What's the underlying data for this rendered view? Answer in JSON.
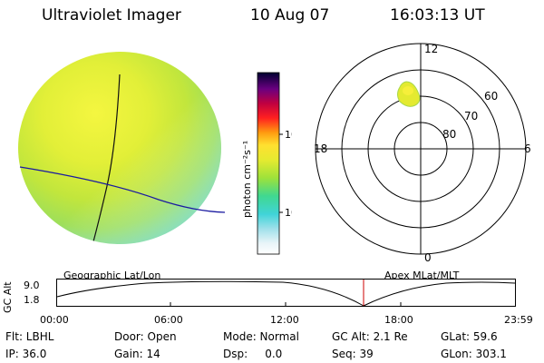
{
  "header": {
    "title": "Ultraviolet Imager",
    "date": "10 Aug 07",
    "time": "16:03:13 UT"
  },
  "colorbar": {
    "unit_label": "photon cm⁻²s⁻¹",
    "tick_100": "100",
    "tick_10": "10"
  },
  "polar": {
    "mlt_top": "12",
    "mlt_left": "18",
    "mlt_right": "6",
    "mlt_bottom": "0",
    "lat_60": "60",
    "lat_70": "70",
    "lat_80": "80"
  },
  "orbit": {
    "left_label": "Geographic Lat/Lon",
    "right_label": "Apex MLat/MLT",
    "yaxis_label": "GC Alt",
    "y_top": "9.0",
    "y_bottom": "1.8",
    "x_ticks": [
      "00:00",
      "06:00",
      "12:00",
      "18:00",
      "23:59"
    ],
    "current_fraction": 0.668,
    "current_marker_color": "#cc0000"
  },
  "info": {
    "flt": "Flt: LBHL",
    "door": "Door: Open",
    "mode": "Mode: Normal",
    "gc_alt": "GC Alt: 2.1 Re",
    "glat": "GLat:  59.6",
    "ip": "IP: 36.0",
    "gain": "Gain: 14",
    "dsp": "Dsp:     0.0",
    "seq": "Seq: 39",
    "glon": "GLon: 303.1"
  }
}
